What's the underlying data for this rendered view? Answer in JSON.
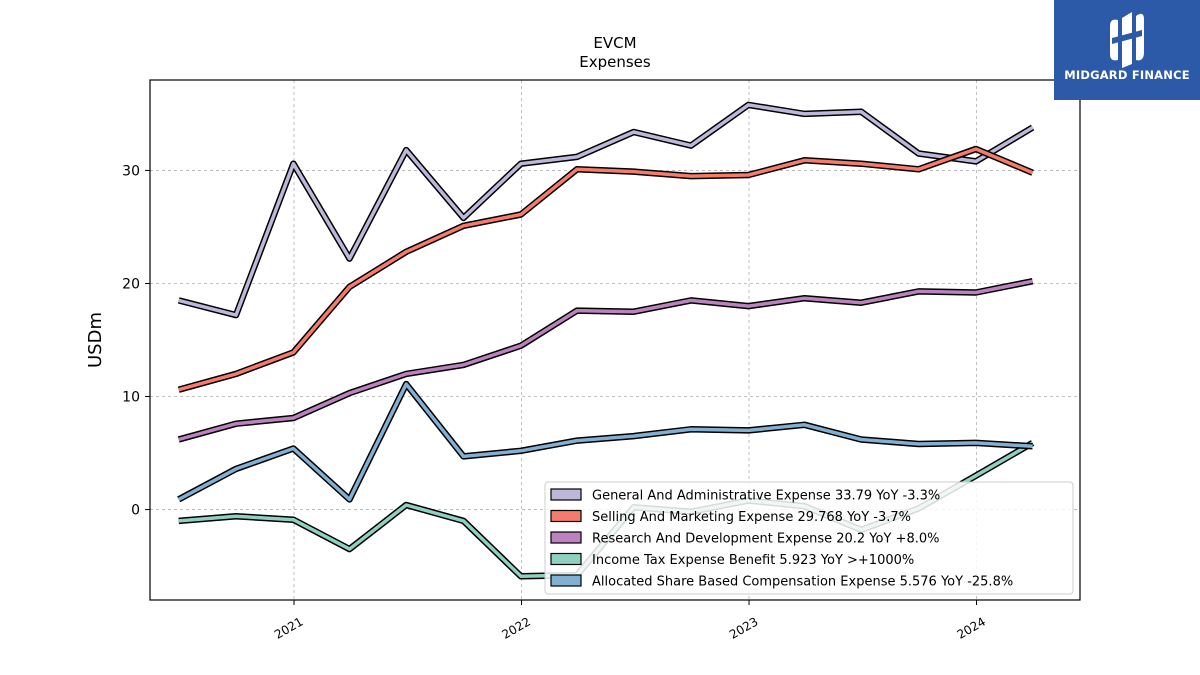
{
  "chart_data": {
    "type": "line",
    "title": "EVCM",
    "subtitle": "Expenses",
    "xlabel": "",
    "ylabel": "USDm",
    "xlim": [
      "2020-05-15",
      "2024-06-15"
    ],
    "ylim": [
      -8,
      38
    ],
    "xticks": [
      {
        "label": "2021",
        "date": "2021-01-01"
      },
      {
        "label": "2022",
        "date": "2022-01-01"
      },
      {
        "label": "2023",
        "date": "2023-01-01"
      },
      {
        "label": "2024",
        "date": "2024-01-01"
      }
    ],
    "yticks": [
      0,
      10,
      20,
      30
    ],
    "grid": true,
    "legend_position": "bottom-right",
    "x": [
      "2020-06-30",
      "2020-09-30",
      "2020-12-31",
      "2021-03-31",
      "2021-06-30",
      "2021-09-30",
      "2021-12-31",
      "2022-03-31",
      "2022-06-30",
      "2022-09-30",
      "2022-12-31",
      "2023-03-31",
      "2023-06-30",
      "2023-09-30",
      "2023-12-31",
      "2024-03-31"
    ],
    "series": [
      {
        "name": "General And Administrative Expense",
        "legend": "General And Administrative Expense  33.79 YoY -3.3%",
        "color": "#bcb8d9",
        "values": [
          18.5,
          17.2,
          30.6,
          22.2,
          31.8,
          25.8,
          30.6,
          31.2,
          33.4,
          32.2,
          35.8,
          35.0,
          35.2,
          31.5,
          30.8,
          33.8
        ]
      },
      {
        "name": "Selling And Marketing Expense",
        "legend": "Selling And Marketing Expense  29.768 YoY -3.7%",
        "color": "#f77b6c",
        "values": [
          10.6,
          12.0,
          13.9,
          19.7,
          22.8,
          25.1,
          26.1,
          30.1,
          29.9,
          29.5,
          29.6,
          30.9,
          30.6,
          30.1,
          31.9,
          29.8
        ]
      },
      {
        "name": "Research And Development Expense",
        "legend": "Research And Development Expense  20.2 YoY +8.0%",
        "color": "#bb82bd",
        "values": [
          6.2,
          7.6,
          8.1,
          10.3,
          12.0,
          12.8,
          14.5,
          17.6,
          17.5,
          18.5,
          18.0,
          18.7,
          18.3,
          19.3,
          19.2,
          20.2
        ]
      },
      {
        "name": "Income Tax Expense Benefit",
        "legend": "Income Tax Expense Benefit  5.923 YoY >+1000%",
        "color": "#8ed1c1",
        "values": [
          -1.0,
          -0.6,
          -0.9,
          -3.5,
          0.4,
          -1.0,
          -5.9,
          -5.8,
          0.2,
          -0.2,
          0.8,
          0.3,
          -1.8,
          0.1,
          3.0,
          5.9
        ]
      },
      {
        "name": "Allocated Share Based Compensation Expense",
        "legend": "Allocated Share Based Compensation Expense  5.576 YoY -25.8%",
        "color": "#82b0d2",
        "values": [
          0.9,
          3.6,
          5.4,
          0.9,
          11.1,
          4.7,
          5.2,
          6.1,
          6.5,
          7.1,
          7.0,
          7.5,
          6.2,
          5.8,
          5.9,
          5.6
        ]
      }
    ]
  },
  "logo": {
    "name": "MIDGARD FINANCE"
  }
}
